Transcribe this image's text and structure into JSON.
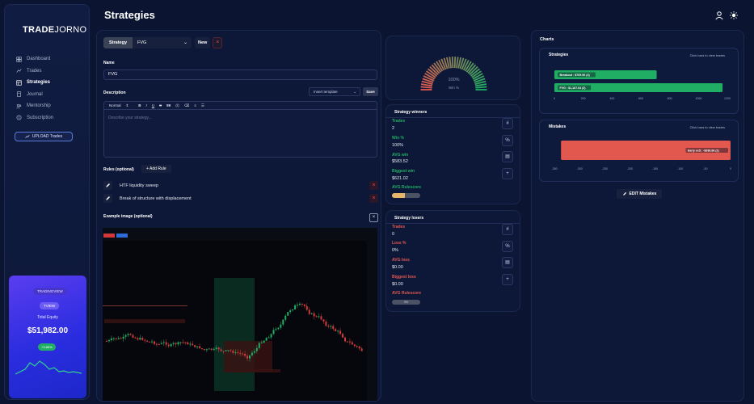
{
  "app": {
    "logo_bold": "TRADE",
    "logo_light": "JORNO"
  },
  "nav": {
    "items": [
      {
        "label": "Dashboard",
        "icon": "dashboard-icon"
      },
      {
        "label": "Trades",
        "icon": "trades-icon"
      },
      {
        "label": "Strategies",
        "icon": "strategies-icon",
        "active": true
      },
      {
        "label": "Journal",
        "icon": "journal-icon"
      },
      {
        "label": "Mentorship",
        "icon": "mentorship-icon"
      },
      {
        "label": "Subscription",
        "icon": "subscription-icon"
      }
    ],
    "upload_label": "UPLOAD Trades"
  },
  "equity": {
    "platform": "TRADINGVIEW",
    "account": "TVIEW",
    "label": "Total Equity",
    "value": "$51,982.00",
    "change": "+3.86%"
  },
  "header": {
    "title": "Strategies"
  },
  "editor": {
    "tab_label": "Strategy",
    "selected_strategy": "FVG",
    "new_label": "New",
    "name_label": "Name",
    "name_value": "FVG",
    "description_label": "Description",
    "insert_template": "Insert template",
    "save_label": "Save",
    "toolbar": {
      "format": "Normal",
      "bold": "B",
      "italic": "I",
      "underline": "U",
      "strike": "S",
      "quote": "99"
    },
    "description_placeholder": "Describe your strategy...",
    "rules_label": "Rules (optional)",
    "add_rule_label": "+ Add Rule",
    "rules": [
      "HTF liquidity sweep",
      "Break of structure with displacement"
    ],
    "example_image_label": "Example image (optional)"
  },
  "gauge": {
    "value_text": "100%",
    "label": "Win %",
    "win_fraction": 1.0,
    "colors": {
      "start": "#e2584f",
      "end": "#1fae63"
    }
  },
  "winners": {
    "title": "Strategy winners",
    "trades_label": "Trades",
    "trades_value": "2",
    "win_label": "Win %",
    "win_value": "100%",
    "avg_label": "AVG win",
    "avg_value": "$583.52",
    "biggest_label": "Biggest win",
    "biggest_value": "$621.02",
    "rule_label": "AVG Rulescore",
    "rule_fraction": 0.45,
    "accent": "#1fae63"
  },
  "losers": {
    "title": "Strategy losers",
    "trades_label": "Trades",
    "trades_value": "0",
    "loss_label": "Loss %",
    "loss_value": "0%",
    "avg_label": "AVG loss",
    "avg_value": "$0.00",
    "biggest_label": "Biggest loss",
    "biggest_value": "$0.00",
    "rule_label": "AVG Rulescore",
    "rule_text": "0%",
    "rule_fraction": 0,
    "accent": "#e2584f"
  },
  "charts": {
    "title": "Charts",
    "edit_mistakes": "EDIT Mistakes",
    "chart_data": [
      {
        "type": "bar",
        "title": "Strategies",
        "hint": "Click bars to view trades",
        "orientation": "horizontal",
        "categories": [
          "Breakout : $709.56 (4)",
          "FVG : $1,167.04 (2)"
        ],
        "values": [
          709.56,
          1167.04
        ],
        "xlim": [
          0,
          1200
        ],
        "xticks": [
          "0",
          "200",
          "400",
          "600",
          "800",
          "1000",
          "1200"
        ],
        "color": "#1fae63"
      },
      {
        "type": "bar",
        "title": "Mistakes",
        "hint": "Click bars to view trades",
        "orientation": "horizontal",
        "categories": [
          "Early exit : -$336.86 (1)"
        ],
        "values": [
          -336.86
        ],
        "xlim": [
          -350,
          0
        ],
        "xticks": [
          "-350",
          "-300",
          "-250",
          "-200",
          "-150",
          "-100",
          "-50",
          "0"
        ],
        "color": "#e2584f"
      }
    ]
  }
}
